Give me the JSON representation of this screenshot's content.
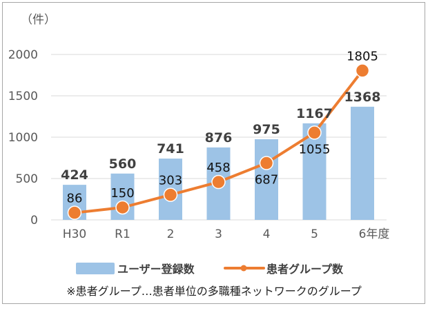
{
  "chart_data": {
    "type": "bar+line",
    "unit_label": "（件）",
    "categories": [
      "H30",
      "R1",
      "2",
      "3",
      "4",
      "5",
      "6年度"
    ],
    "series": [
      {
        "name": "ユーザー登録数",
        "type": "bar",
        "color": "#9dc3e6",
        "values": [
          424,
          560,
          741,
          876,
          975,
          1167,
          1368
        ]
      },
      {
        "name": "患者グループ数",
        "type": "line",
        "color": "#ed7d31",
        "values": [
          86,
          150,
          303,
          458,
          687,
          1055,
          1805
        ]
      }
    ],
    "ylim": [
      0,
      2000
    ],
    "yticks": [
      "0",
      "500",
      "1000",
      "1500",
      "2000"
    ],
    "grid": true,
    "legend": "bottom",
    "footnote": "※患者グループ…患者単位の多職種ネットワークのグループ"
  }
}
